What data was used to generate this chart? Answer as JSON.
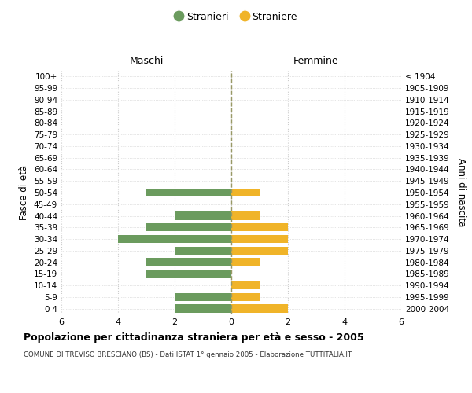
{
  "age_groups": [
    "100+",
    "95-99",
    "90-94",
    "85-89",
    "80-84",
    "75-79",
    "70-74",
    "65-69",
    "60-64",
    "55-59",
    "50-54",
    "45-49",
    "40-44",
    "35-39",
    "30-34",
    "25-29",
    "20-24",
    "15-19",
    "10-14",
    "5-9",
    "0-4"
  ],
  "birth_years": [
    "≤ 1904",
    "1905-1909",
    "1910-1914",
    "1915-1919",
    "1920-1924",
    "1925-1929",
    "1930-1934",
    "1935-1939",
    "1940-1944",
    "1945-1949",
    "1950-1954",
    "1955-1959",
    "1960-1964",
    "1965-1969",
    "1970-1974",
    "1975-1979",
    "1980-1984",
    "1985-1989",
    "1990-1994",
    "1995-1999",
    "2000-2004"
  ],
  "males": [
    0,
    0,
    0,
    0,
    0,
    0,
    0,
    0,
    0,
    0,
    3,
    0,
    2,
    3,
    4,
    2,
    3,
    3,
    0,
    2,
    2
  ],
  "females": [
    0,
    0,
    0,
    0,
    0,
    0,
    0,
    0,
    0,
    0,
    1,
    0,
    1,
    2,
    2,
    2,
    1,
    0,
    1,
    1,
    2
  ],
  "male_color": "#6b9b5e",
  "female_color": "#f0b429",
  "center_line_color": "#999966",
  "title": "Popolazione per cittadinanza straniera per età e sesso - 2005",
  "subtitle": "COMUNE DI TREVISO BRESCIANO (BS) - Dati ISTAT 1° gennaio 2005 - Elaborazione TUTTITALIA.IT",
  "xlabel_left": "Maschi",
  "xlabel_right": "Femmine",
  "ylabel_left": "Fasce di età",
  "ylabel_right": "Anni di nascita",
  "legend_male": "Stranieri",
  "legend_female": "Straniere",
  "xlim": 6,
  "xticks": [
    -6,
    -4,
    -2,
    0,
    2,
    4,
    6
  ],
  "xtick_labels": [
    "6",
    "4",
    "2",
    "0",
    "2",
    "4",
    "6"
  ],
  "background_color": "#ffffff",
  "grid_color": "#cccccc"
}
